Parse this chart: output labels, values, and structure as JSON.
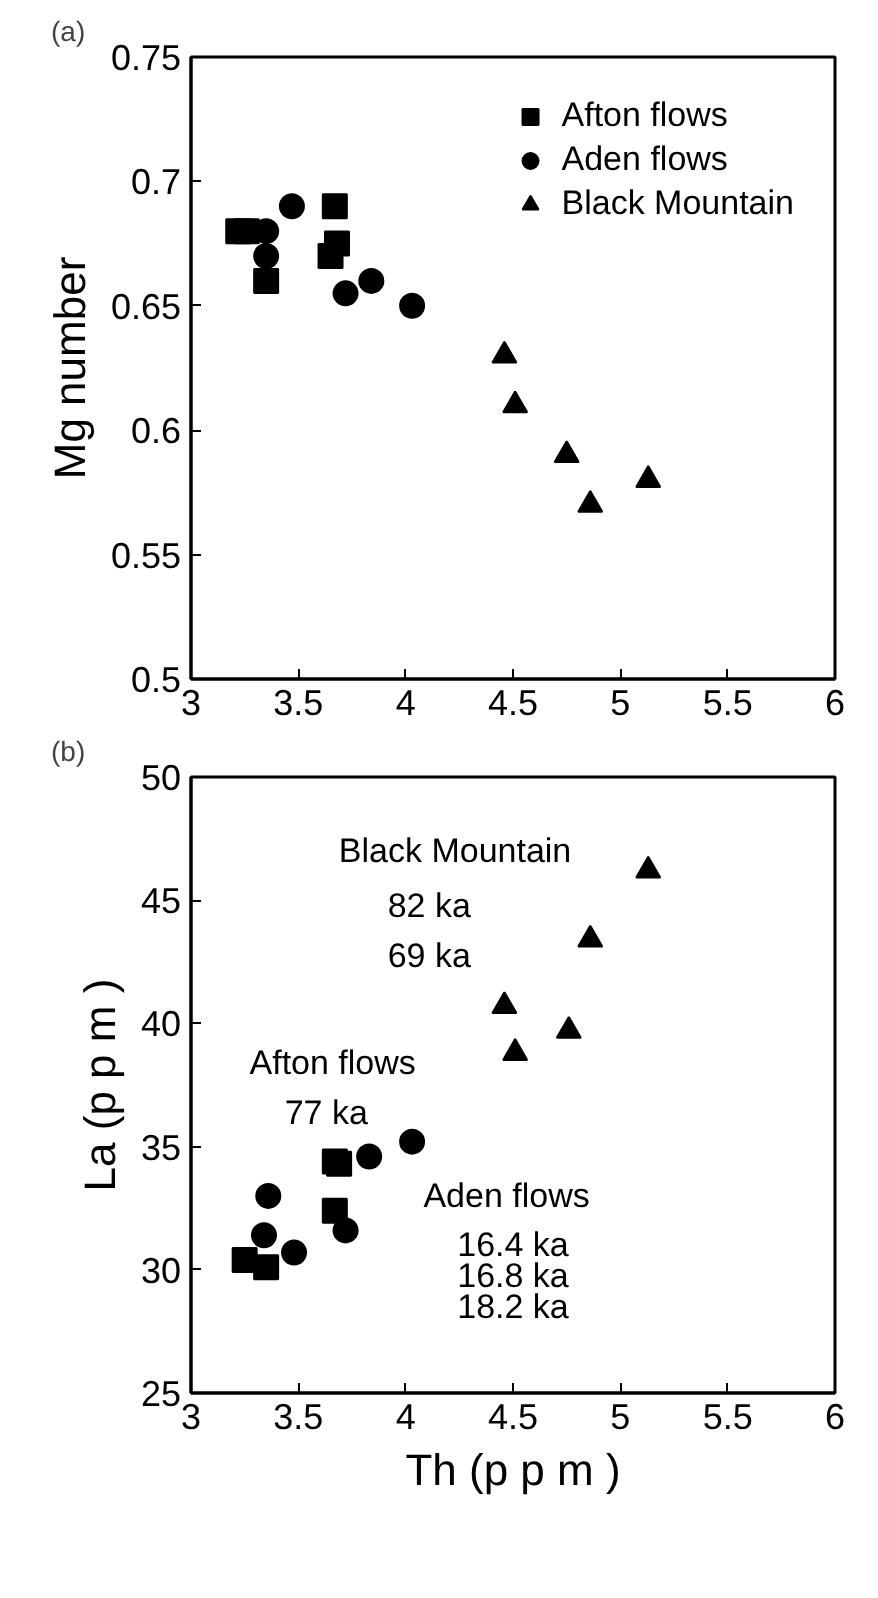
{
  "chart_data": [
    {
      "type": "scatter",
      "title": "(a)",
      "ylabel": "Mg number",
      "xlim": [
        3,
        6
      ],
      "ylim": [
        0.5,
        0.75
      ],
      "xticks": [
        3,
        3.5,
        4,
        4.5,
        5,
        5.5,
        6
      ],
      "yticks": [
        0.5,
        0.55,
        0.6,
        0.65,
        0.7,
        0.75
      ],
      "grid": false,
      "legend": "top right",
      "series": [
        {
          "name": "Afton flows",
          "color": "#000000",
          "marker": "square",
          "x": [
            3.22,
            3.26,
            3.35,
            3.67,
            3.68,
            3.65
          ],
          "values": [
            0.68,
            0.68,
            0.66,
            0.69,
            0.675,
            0.67
          ]
        },
        {
          "name": "Aden flows",
          "color": "#000000",
          "marker": "circle",
          "x": [
            3.35,
            3.35,
            3.47,
            3.72,
            3.84,
            4.03
          ],
          "values": [
            0.68,
            0.67,
            0.69,
            0.655,
            0.66,
            0.65
          ]
        },
        {
          "name": "Black Mountain",
          "color": "#000000",
          "marker": "triangle",
          "x": [
            4.46,
            4.51,
            4.75,
            4.86,
            5.13
          ],
          "values": [
            0.63,
            0.61,
            0.59,
            0.57,
            0.58
          ]
        }
      ]
    },
    {
      "type": "scatter",
      "title": "(b)",
      "xlabel": "Th (p p m )",
      "ylabel": "La (p p m )",
      "xlim": [
        3,
        6
      ],
      "ylim": [
        25,
        50
      ],
      "xticks": [
        3,
        3.5,
        4,
        4.5,
        5,
        5.5,
        6
      ],
      "yticks": [
        25,
        30,
        35,
        40,
        45,
        50
      ],
      "grid": false,
      "series": [
        {
          "color": "#000000",
          "marker": "square",
          "x": [
            3.25,
            3.35,
            3.67,
            3.69,
            3.67
          ],
          "values": [
            30.4,
            30.1,
            34.4,
            34.3,
            32.4
          ]
        },
        {
          "color": "#000000",
          "marker": "circle",
          "x": [
            3.36,
            3.34,
            3.48,
            3.72,
            3.83,
            4.03
          ],
          "values": [
            33.0,
            31.4,
            30.7,
            31.6,
            34.6,
            35.2
          ]
        },
        {
          "color": "#000000",
          "marker": "triangle",
          "x": [
            5.13,
            4.86,
            4.46,
            4.51,
            4.76
          ],
          "values": [
            46.2,
            43.4,
            40.7,
            38.8,
            39.7
          ]
        }
      ],
      "annotations": [
        "Black Mountain",
        "82 ka",
        "69 ka",
        "Afton flows",
        "77 ka",
        "Aden flows",
        "16.4 ka",
        "16.8 ka",
        "18.2 ka"
      ]
    }
  ]
}
